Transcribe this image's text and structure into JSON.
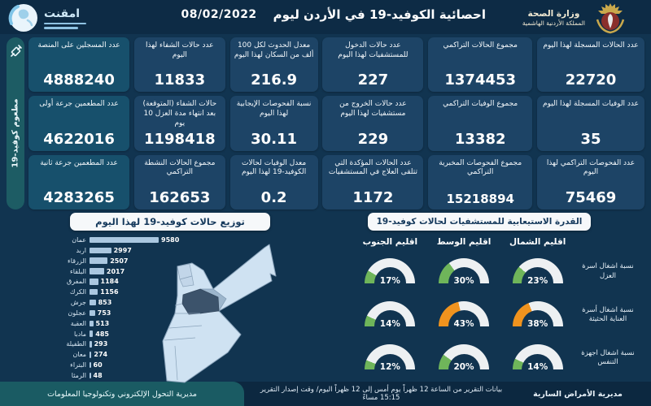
{
  "header": {
    "title": "احصائية الكوفيد-19 في الأردن ليوم",
    "date": "08/02/2022",
    "ministry_line1": "وزارة الصحة",
    "ministry_line2": "المملكة الأردنية الهاشمية",
    "left_logo_text": "امقنت"
  },
  "stats_columns": [
    {
      "cards": [
        {
          "label": "عدد الحالات المسجلة لهذا اليوم",
          "value": "22720"
        },
        {
          "label": "عدد الوفيات المسجلة لهذا اليوم",
          "value": "35"
        },
        {
          "label": "عدد الفحوصات التراكمي لهذا اليوم",
          "value": "75469"
        }
      ]
    },
    {
      "cards": [
        {
          "label": "مجموع الحالات التراكمي",
          "value": "1374453"
        },
        {
          "label": "مجموع الوفيات التراكمي",
          "value": "13382"
        },
        {
          "label": "مجموع الفحوصات المخبرية التراكمي",
          "value": "15218894"
        }
      ]
    },
    {
      "cards": [
        {
          "label": "عدد حالات الدخول للمستشفيات لهذا اليوم",
          "value": "227"
        },
        {
          "label": "عدد حالات الخروج من مستشفيات لهذا اليوم",
          "value": "229"
        },
        {
          "label": "عدد الحالات المؤكدة التي تتلقى العلاج في المستشفيات",
          "value": "1172"
        }
      ]
    },
    {
      "cards": [
        {
          "label": "معدل الحدوث لكل 100 ألف من السكان لهذا اليوم",
          "value": "216.9"
        },
        {
          "label": "نسبة الفحوصات الإيجابية لهذا اليوم",
          "value": "30.11"
        },
        {
          "label": "معدل الوفيات لحالات الكوفيد-19 لهذا اليوم",
          "value": "0.2"
        }
      ]
    },
    {
      "cards": [
        {
          "label": "عدد حالات الشفاء لهذا اليوم",
          "value": "11833"
        },
        {
          "label": "حالات الشفاء (المتوقعة) بعد انتهاء مدة العزل 10 يوم",
          "value": "1198418"
        },
        {
          "label": "مجموع الحالات النشطة التراكمي",
          "value": "162653"
        }
      ]
    }
  ],
  "vaccination": {
    "sidebar_label": "مطعوم كوفيد-19",
    "cards": [
      {
        "label": "عدد المسجلين على المنصة",
        "value": "4888240"
      },
      {
        "label": "عدد المطعمين جرعة أولى",
        "value": "4622016"
      },
      {
        "label": "عدد المطعمين جرعة ثانية",
        "value": "4283265"
      }
    ]
  },
  "chart_data": [
    {
      "type": "bar",
      "orientation": "horizontal",
      "title": "توزيع حالات كوفيد-19 لهذا اليوم",
      "categories": [
        "عمان",
        "اربد",
        "الزرقاء",
        "البلقاء",
        "المفرق",
        "الكرك",
        "جرش",
        "عجلون",
        "العقبة",
        "مادبا",
        "الطفيلة",
        "معان",
        "البتراء",
        "الرمثا"
      ],
      "values": [
        9580,
        2997,
        2507,
        2017,
        1184,
        1156,
        853,
        753,
        513,
        485,
        293,
        274,
        60,
        48
      ],
      "xlim": [
        0,
        9580
      ],
      "bar_color": "#aac7e0"
    },
    {
      "type": "gauge-grid",
      "title": "القدرة الاستيعابية للمستشفيات لحالات كوفيد-19",
      "unit": "%",
      "columns": [
        "اقليم الشمال",
        "اقليم الوسط",
        "اقليم الجنوب"
      ],
      "rows": [
        {
          "label": "نسبة اشغال اسرة العزل",
          "values": [
            23,
            30,
            17
          ],
          "colors": [
            "green",
            "green",
            "green"
          ]
        },
        {
          "label": "نسبة اشغال أسرة العناية الحثيثة",
          "values": [
            38,
            43,
            14
          ],
          "colors": [
            "orange",
            "orange",
            "green"
          ]
        },
        {
          "label": "نسبة اشغال اجهزة التنفس",
          "values": [
            14,
            20,
            12
          ],
          "colors": [
            "green",
            "green",
            "green"
          ]
        }
      ]
    }
  ],
  "footer": {
    "left": "مديرية التحول الإلكتروني وتكنولوجيا المعلومات",
    "middle": "بيانات التقرير من الساعة 12 ظهراً يوم أمس إلى 12 ظهراً اليوم/ وقت إصدار التقرير 15:15 مساءً",
    "right": "مديرية الأمراض السارية"
  },
  "colors": {
    "background": "#113450",
    "card": "#1d4466",
    "vaccination_card": "#17506c",
    "teal": "#1a5b63",
    "bar": "#aac7e0",
    "gauge_green": "#6fb55a",
    "gauge_orange": "#f0931e",
    "gauge_track": "#edf0f2",
    "map_light": "#cfe2f2",
    "map_amman_dark": "#3c536b"
  }
}
